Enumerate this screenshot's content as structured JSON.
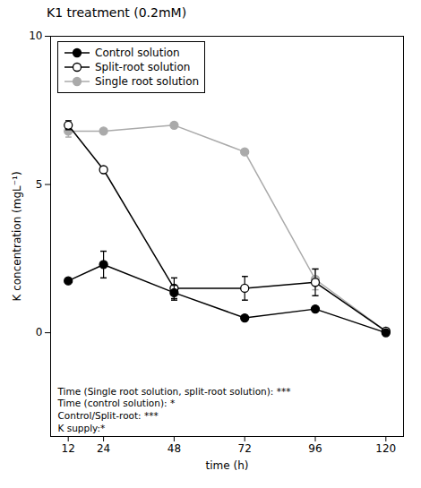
{
  "chart_data": {
    "type": "line",
    "title": "K1 treatment (0.2mM)",
    "xlabel": "time (h)",
    "ylabel": "K concentration (mgL⁻¹)",
    "x": [
      12,
      24,
      48,
      72,
      96,
      120
    ],
    "series": [
      {
        "name": "Control solution",
        "color": "#000000",
        "marker": "circle",
        "values": [
          1.75,
          2.3,
          1.35,
          0.5,
          0.8,
          0.0
        ],
        "errors": [
          0.0,
          0.45,
          0.25,
          0.0,
          0.0,
          0.0
        ]
      },
      {
        "name": "Split-root solution",
        "color": "#000000",
        "marker": "open_circle",
        "values": [
          7.0,
          5.5,
          1.5,
          1.5,
          1.7,
          0.05
        ],
        "errors": [
          0.15,
          0.0,
          0.35,
          0.4,
          0.45,
          0.0
        ]
      },
      {
        "name": "Single root solution",
        "color": "#aaaaaa",
        "marker": "circle",
        "values": [
          6.8,
          6.8,
          7.0,
          6.1,
          1.8,
          0.05
        ],
        "errors": [
          0.2,
          0.0,
          0.0,
          0.0,
          0.35,
          0.0
        ]
      }
    ],
    "xlim": [
      6,
      126
    ],
    "xticks": [
      12,
      24,
      48,
      72,
      96,
      120
    ],
    "ylim": [
      -3.5,
      10
    ],
    "yticks": [
      0,
      5,
      10
    ],
    "annotation": "Time (Single root solution, split-root solution): ***\nTime (control solution): *\nControl/Split-root: ***\nK supply:*",
    "legend": "upper left",
    "grid": false
  }
}
